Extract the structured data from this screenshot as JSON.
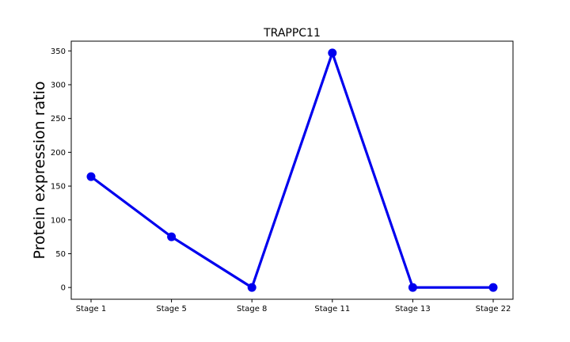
{
  "chart_data": {
    "type": "line",
    "title": "TRAPPC11",
    "xlabel": "",
    "ylabel": "Protein expression ratio",
    "categories": [
      "Stage 1",
      "Stage 5",
      "Stage 8",
      "Stage 11",
      "Stage 13",
      "Stage 22"
    ],
    "series": [
      {
        "values": [
          164,
          75,
          0,
          347,
          0,
          0
        ],
        "color": "#0000ee"
      }
    ],
    "ylim": [
      -17.4,
      364.4
    ],
    "yticks": [
      0,
      50,
      100,
      150,
      200,
      250,
      300,
      350
    ],
    "grid": false,
    "legend": "none"
  }
}
